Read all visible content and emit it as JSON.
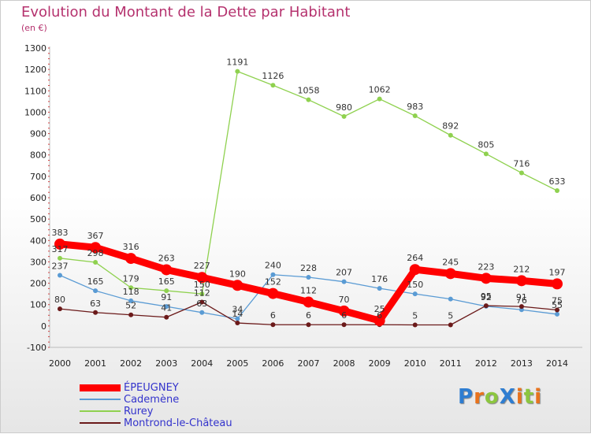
{
  "chart_data": {
    "type": "line",
    "title": "Evolution du Montant de la Dette par Habitant",
    "unit": "(en €)",
    "xlabel": "",
    "ylabel": "",
    "ylim": [
      -100,
      1300
    ],
    "yticks": [
      -100,
      0,
      100,
      200,
      300,
      400,
      500,
      600,
      700,
      800,
      900,
      1000,
      1100,
      1200,
      1300
    ],
    "x": [
      "2000",
      "2001",
      "2002",
      "2003",
      "2004",
      "2005",
      "2006",
      "2007",
      "2008",
      "2009",
      "2010",
      "2011",
      "2012",
      "2013",
      "2014"
    ],
    "grid": false,
    "legend_position": "bottom-left",
    "series": [
      {
        "name": "ÉPEUGNEY",
        "color": "#ff0000",
        "values": [
          383,
          367,
          316,
          263,
          227,
          190,
          152,
          112,
          70,
          25,
          264,
          245,
          223,
          212,
          197
        ],
        "labels": [
          "383",
          "367",
          "316",
          "263",
          "227",
          "190",
          "152",
          "112",
          "70",
          "25",
          "264",
          "245",
          "223",
          "212",
          "197"
        ],
        "thick": true
      },
      {
        "name": "Cademène",
        "color": "#5a9bd4",
        "values": [
          237,
          165,
          118,
          91,
          63,
          34,
          240,
          228,
          207,
          176,
          150,
          126,
          92,
          76,
          55
        ],
        "labels": [
          "237",
          "165",
          "118",
          "91",
          "63",
          "34",
          "240",
          "228",
          "207",
          "176",
          "150",
          "",
          "92",
          "76",
          "55"
        ]
      },
      {
        "name": "Rurey",
        "color": "#8fd14f",
        "values": [
          317,
          298,
          179,
          165,
          150,
          1191,
          1126,
          1058,
          980,
          1062,
          983,
          892,
          805,
          716,
          633
        ],
        "labels": [
          "317",
          "298",
          "179",
          "165",
          "150",
          "1191",
          "1126",
          "1058",
          "980",
          "1062",
          "983",
          "892",
          "805",
          "716",
          "633"
        ]
      },
      {
        "name": "Montrond-le-Château",
        "color": "#6b1a1a",
        "values": [
          80,
          63,
          52,
          41,
          112,
          14,
          6,
          6,
          6,
          6,
          5,
          5,
          95,
          91,
          75
        ],
        "labels": [
          "80",
          "63",
          "52",
          "41",
          "112",
          "14",
          "6",
          "6",
          "6",
          "6",
          "5",
          "5",
          "95",
          "91",
          "75"
        ]
      }
    ]
  },
  "logo": {
    "text": "ProXiti",
    "colors": [
      "#2e7dd1",
      "#e8731d",
      "#8cc63f",
      "#2e7dd1",
      "#e8731d",
      "#8cc63f",
      "#e8731d"
    ]
  }
}
